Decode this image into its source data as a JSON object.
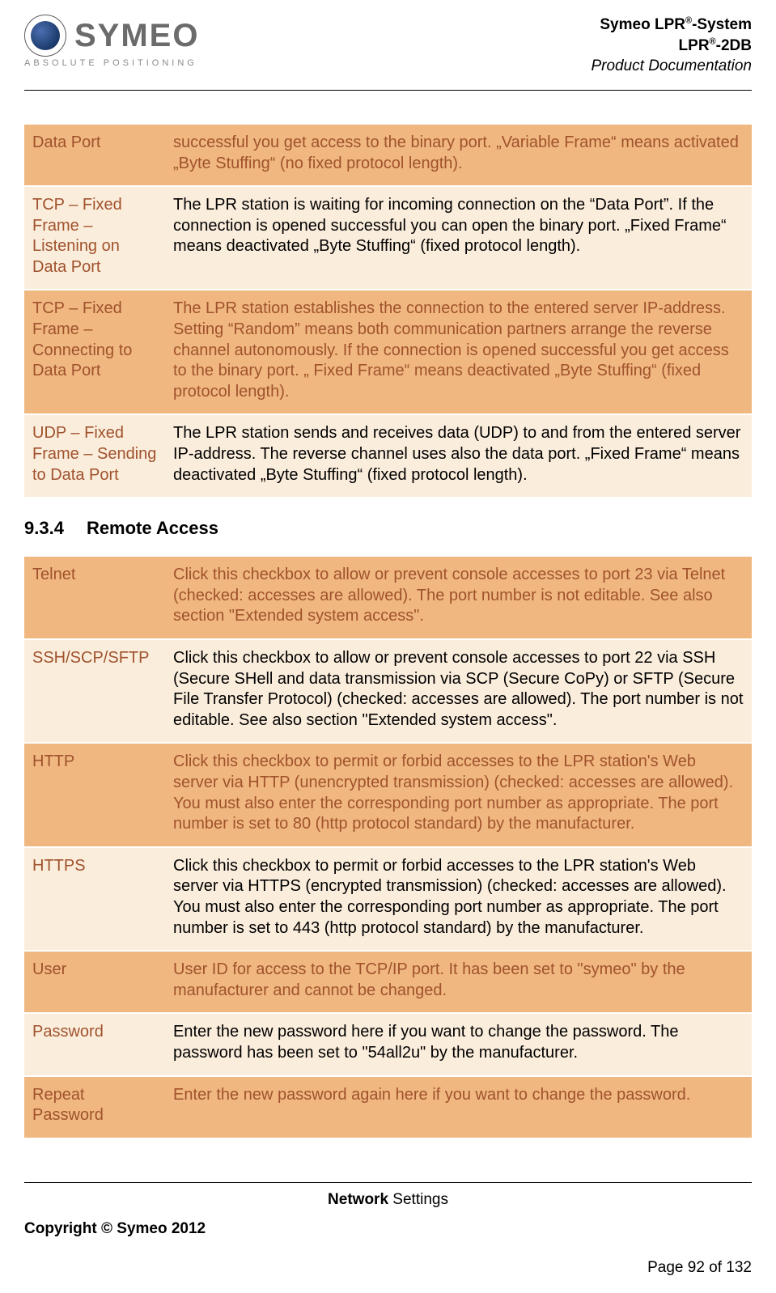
{
  "header": {
    "logo_text": "SYMEO",
    "logo_sub": "ABSOLUTE POSITIONING",
    "line1_a": "Symeo LPR",
    "line1_b": "-System",
    "line2_a": "LPR",
    "line2_b": "-2DB",
    "sup": "®",
    "line3": "Product Documentation"
  },
  "table1": {
    "rows": [
      {
        "label": "Data Port",
        "desc": "successful you get access to the binary port. „Variable Frame“ means activated „Byte Stuffing“ (no fixed protocol length).",
        "variant": "dark"
      },
      {
        "label": "TCP – Fixed Frame – Listening on Data Port",
        "desc": "The LPR station is waiting for incoming connection on the “Data Port”. If the connection is opened successful you can open the binary port. „Fixed Frame“ means deactivated „Byte Stuffing“ (fixed protocol length).",
        "variant": "light"
      },
      {
        "label": "TCP – Fixed Frame – Connecting to Data Port",
        "desc": "The LPR station establishes the connection to the entered server IP-address. Setting “Random” means both communication partners arrange the reverse channel autonomously. If the connection is opened successful you get access to the binary port. „ Fixed Frame“ means deactivated „Byte Stuffing“ (fixed protocol length).",
        "variant": "dark"
      },
      {
        "label": "UDP – Fixed Frame – Sending to Data Port",
        "desc": "The LPR station sends and receives data (UDP) to and from the entered server IP-address. The reverse channel uses also the data port. „Fixed Frame“ means deactivated „Byte Stuffing“ (fixed protocol length).",
        "variant": "light"
      }
    ]
  },
  "section": {
    "number": "9.3.4",
    "title": "Remote Access"
  },
  "table2": {
    "rows": [
      {
        "label": "Telnet",
        "desc": "Click this checkbox to allow or prevent console accesses to port 23 via Telnet (checked: accesses are allowed). The port number is not editable. See also section \"Extended system access\".",
        "variant": "dark"
      },
      {
        "label": "SSH/SCP/SFTP",
        "desc": "Click this checkbox to allow or prevent console accesses to port 22 via SSH (Secure SHell and data transmission via SCP (Secure CoPy) or SFTP (Secure File Transfer Protocol) (checked: accesses are allowed). The port number is not editable. See also section \"Extended system access\".",
        "variant": "light"
      },
      {
        "label": "HTTP",
        "desc": "Click this checkbox to permit or forbid accesses to the LPR station's Web server via HTTP (unencrypted transmission) (checked: accesses are allowed). You must also enter the corresponding port number as appropriate. The port number is set to 80 (http protocol standard) by the manufacturer.",
        "variant": "dark"
      },
      {
        "label": "HTTPS",
        "desc": "Click this checkbox to permit or forbid accesses to the LPR station's Web server via HTTPS (encrypted transmission) (checked: accesses are allowed). You must also enter the corresponding port number as appropriate. The port number is set to 443 (http protocol standard) by the manufacturer.",
        "variant": "light"
      },
      {
        "label": "User",
        "desc": "User ID for access to the TCP/IP port. It has been set to \"symeo\" by the manufacturer and cannot be changed.",
        "variant": "dark"
      },
      {
        "label": "Password",
        "desc": "Enter the new password here if you want to change the password. The password has been set to \"54all2u\" by the manufacturer.",
        "variant": "light"
      },
      {
        "label": "Repeat Password",
        "desc": "Enter the new password again here if you want to change the password.",
        "variant": "dark"
      }
    ]
  },
  "footer": {
    "center_bold": "Network",
    "center_rest": " Settings",
    "copyright": "Copyright © Symeo 2012",
    "page": "Page 92 of 132"
  },
  "colors": {
    "row_dark": "#f0b880",
    "row_light": "#fbeddc",
    "label_text": "#a0522d"
  }
}
